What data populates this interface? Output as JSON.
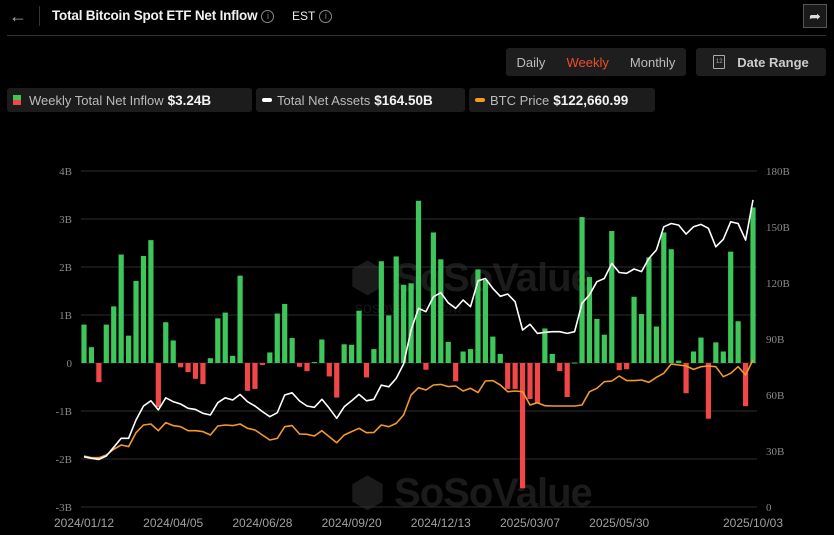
{
  "header": {
    "back_icon": "arrow-left-icon",
    "title": "Total Bitcoin Spot ETF Net Inflow",
    "timezone": "EST",
    "info_icon": "info-circle-icon",
    "share_icon": "share-icon"
  },
  "controls": {
    "periods": [
      {
        "label": "Daily",
        "active": false
      },
      {
        "label": "Weekly",
        "active": true
      },
      {
        "label": "Monthly",
        "active": false
      }
    ],
    "date_range_label": "Date Range",
    "calendar_icon": "calendar-icon",
    "calendar_day": "12",
    "active_color": "#ef4b2c"
  },
  "legend": [
    {
      "label": "Weekly Total Net Inflow",
      "value": "$3.24B",
      "colors": [
        "#3ec65a",
        "#f04848"
      ]
    },
    {
      "label": "Total Net Assets",
      "value": "$164.50B",
      "color": "#ffffff"
    },
    {
      "label": "BTC Price",
      "value": "$122,660.99",
      "color": "#f2992e"
    }
  ],
  "watermark": {
    "brand": "SoSoValue",
    "site": "sosovalue.com"
  },
  "chart_data": {
    "type": "bar+line",
    "x": [
      "2024/01/12",
      "2024/01/19",
      "2024/01/26",
      "2024/02/02",
      "2024/02/09",
      "2024/02/16",
      "2024/02/23",
      "2024/03/01",
      "2024/03/08",
      "2024/03/15",
      "2024/03/22",
      "2024/03/29",
      "2024/04/05",
      "2024/04/12",
      "2024/04/19",
      "2024/04/26",
      "2024/05/03",
      "2024/05/10",
      "2024/05/17",
      "2024/05/24",
      "2024/05/31",
      "2024/06/07",
      "2024/06/14",
      "2024/06/21",
      "2024/06/28",
      "2024/07/05",
      "2024/07/12",
      "2024/07/19",
      "2024/07/26",
      "2024/08/02",
      "2024/08/09",
      "2024/08/16",
      "2024/08/23",
      "2024/08/30",
      "2024/09/06",
      "2024/09/13",
      "2024/09/20",
      "2024/09/27",
      "2024/10/04",
      "2024/10/11",
      "2024/10/18",
      "2024/10/25",
      "2024/11/01",
      "2024/11/08",
      "2024/11/15",
      "2024/11/22",
      "2024/11/29",
      "2024/12/06",
      "2024/12/13",
      "2024/12/20",
      "2024/12/27",
      "2025/01/03",
      "2025/01/10",
      "2025/01/17",
      "2025/01/24",
      "2025/01/31",
      "2025/02/07",
      "2025/02/14",
      "2025/02/21",
      "2025/02/28",
      "2025/03/07",
      "2025/03/14",
      "2025/03/21",
      "2025/03/28",
      "2025/04/04",
      "2025/04/11",
      "2025/04/18",
      "2025/04/25",
      "2025/05/02",
      "2025/05/09",
      "2025/05/16",
      "2025/05/23",
      "2025/05/30",
      "2025/06/06",
      "2025/06/13",
      "2025/06/20",
      "2025/06/27",
      "2025/07/04",
      "2025/07/11",
      "2025/07/18",
      "2025/07/25",
      "2025/08/01",
      "2025/08/08",
      "2025/08/15",
      "2025/08/22",
      "2025/08/29",
      "2025/09/05",
      "2025/09/12",
      "2025/09/19",
      "2025/09/26",
      "2025/10/03"
    ],
    "x_tick_labels": [
      "2024/01/12",
      "2024/04/05",
      "2024/06/28",
      "2024/09/20",
      "2024/12/13",
      "2025/03/07",
      "2025/05/30",
      "2025/10/03"
    ],
    "series": [
      {
        "name": "Weekly Total Net Inflow",
        "type": "bar",
        "axis": "left",
        "unit": "B USD",
        "values": [
          0.8,
          0.33,
          -0.4,
          0.8,
          1.18,
          2.26,
          0.57,
          1.71,
          2.23,
          2.56,
          -0.92,
          0.85,
          0.47,
          -0.09,
          -0.19,
          -0.33,
          -0.44,
          0.1,
          0.93,
          1.05,
          0.15,
          1.82,
          -0.58,
          -0.54,
          -0.04,
          0.22,
          1.03,
          1.23,
          0.52,
          -0.08,
          -0.17,
          0.02,
          0.49,
          -0.28,
          -0.72,
          0.39,
          0.38,
          1.09,
          -0.3,
          0.29,
          2.12,
          0.99,
          2.22,
          1.63,
          1.66,
          3.38,
          -0.14,
          2.72,
          2.16,
          0.44,
          -0.38,
          0.24,
          0.29,
          1.95,
          1.73,
          0.55,
          0.19,
          -0.54,
          -0.54,
          -2.61,
          -0.75,
          -0.84,
          0.72,
          0.19,
          -0.17,
          -0.71,
          0.01,
          3.04,
          1.79,
          0.92,
          0.59,
          2.75,
          -0.15,
          -0.13,
          1.38,
          1.02,
          2.2,
          0.76,
          2.72,
          2.37,
          0.05,
          -0.63,
          0.24,
          0.53,
          -1.16,
          0.43,
          0.24,
          2.32,
          0.87,
          -0.9,
          3.24
        ],
        "positive_color": "#3ec65a",
        "negative_color": "#f04848"
      },
      {
        "name": "Total Net Assets",
        "type": "line",
        "axis": "right",
        "unit": "B USD",
        "color": "#ffffff",
        "values": [
          26.9,
          26.1,
          25.5,
          27.3,
          32.0,
          36.8,
          36.8,
          46.6,
          54.1,
          56.9,
          52.0,
          58.5,
          56.4,
          55.2,
          52.9,
          52.3,
          50.2,
          49.3,
          55.9,
          58.5,
          57.3,
          60.3,
          56.4,
          54.1,
          51.1,
          48.4,
          50.5,
          60.0,
          61.2,
          56.8,
          54.1,
          53.4,
          57.7,
          52.9,
          47.5,
          53.7,
          56.9,
          60.3,
          56.9,
          57.7,
          65.3,
          64.4,
          68.9,
          76.6,
          94.8,
          106.4,
          104.6,
          112.6,
          114.8,
          109.4,
          106.4,
          110.9,
          107.3,
          121.2,
          122.4,
          117.1,
          112.9,
          114.1,
          110.0,
          94.8,
          97.9,
          93.0,
          93.6,
          93.9,
          93.9,
          93.0,
          93.9,
          109.1,
          113.7,
          120.7,
          122.4,
          130.5,
          125.6,
          125.2,
          127.5,
          126.1,
          133.2,
          137.7,
          150.1,
          151.9,
          151.0,
          146.2,
          150.1,
          151.4,
          149.3,
          139.4,
          143.4,
          152.8,
          151.9,
          143.0,
          164.5
        ]
      },
      {
        "name": "BTC Price",
        "type": "line",
        "axis": "hidden",
        "unit": "thousand USD",
        "color": "#f2992e",
        "values": [
          42.5,
          41.1,
          41.1,
          43.3,
          48.1,
          51.7,
          50.3,
          61.9,
          68.3,
          69.2,
          63.6,
          70.3,
          67.8,
          66.9,
          63.6,
          63.6,
          62.8,
          60.0,
          67.5,
          68.3,
          67.8,
          69.2,
          65.6,
          64.2,
          60.0,
          55.8,
          57.2,
          66.9,
          67.8,
          60.8,
          60.6,
          59.2,
          63.6,
          58.6,
          53.6,
          60.0,
          62.8,
          65.6,
          61.9,
          62.2,
          68.3,
          66.9,
          69.7,
          76.7,
          93.3,
          99.4,
          97.5,
          101.7,
          102.2,
          100.3,
          100.8,
          96.7,
          98.9,
          95.3,
          105.0,
          105.3,
          101.7,
          96.1,
          96.7,
          96.1,
          85.0,
          86.9,
          84.4,
          84.2,
          84.2,
          84.2,
          84.2,
          85.0,
          96.1,
          98.9,
          104.4,
          105.0,
          109.2,
          105.3,
          105.3,
          105.8,
          103.9,
          108.1,
          111.4,
          119.2,
          118.3,
          117.5,
          114.7,
          116.9,
          117.5,
          116.9,
          108.6,
          111.4,
          116.9,
          110.0,
          122.66
        ]
      }
    ],
    "left_axis": {
      "ticks": [
        "4B",
        "3B",
        "2B",
        "1B",
        "0",
        "-1B",
        "-2B",
        "-3B"
      ],
      "range": [
        -3,
        4
      ]
    },
    "right_axis": {
      "ticks": [
        "180B",
        "150B",
        "120B",
        "90B",
        "60B",
        "30B",
        "0"
      ],
      "range": [
        0,
        180
      ]
    },
    "price_axis_range": [
      0,
      280
    ],
    "grid": true,
    "legend_placement": "top-left"
  }
}
